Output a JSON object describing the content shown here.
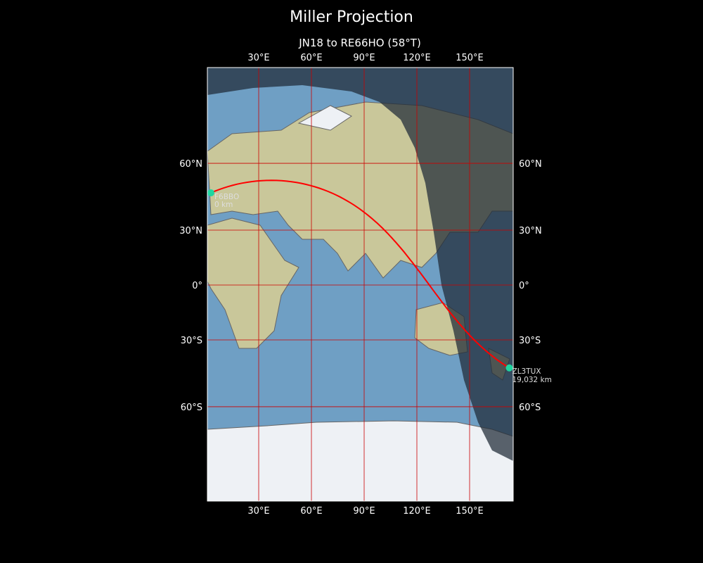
{
  "figure_title": "Miller Projection",
  "axes_title": "JN18 to RE66HO (58°T)",
  "map": {
    "projection": "Miller",
    "lon_range": [
      1,
      175
    ],
    "lat_range": [
      -87,
      87
    ],
    "ocean_color": "#6f9fc4",
    "land_color": "#c9c79a",
    "ice_color": "#eef1f5",
    "night_shade_color": "#1e2a36",
    "grid_color": "#cc0000",
    "path_color": "#ff0000",
    "marker_color": "#1ed6a0",
    "lon_ticks": [
      30,
      60,
      90,
      120,
      150
    ],
    "lon_tick_labels": [
      "30°E",
      "60°E",
      "90°E",
      "120°E",
      "150°E"
    ],
    "lat_ticks": [
      60,
      30,
      0,
      -30,
      -60
    ],
    "lat_tick_labels": [
      "60°N",
      "30°N",
      "0°",
      "30°S",
      "60°S"
    ],
    "start": {
      "call": "F6BBO",
      "distance": "0 km",
      "lat": 47.9,
      "lon": 2.8
    },
    "end": {
      "call": "ZL3TUX",
      "distance": "19,032 km",
      "lat": -43.7,
      "lon": 172.6
    }
  }
}
